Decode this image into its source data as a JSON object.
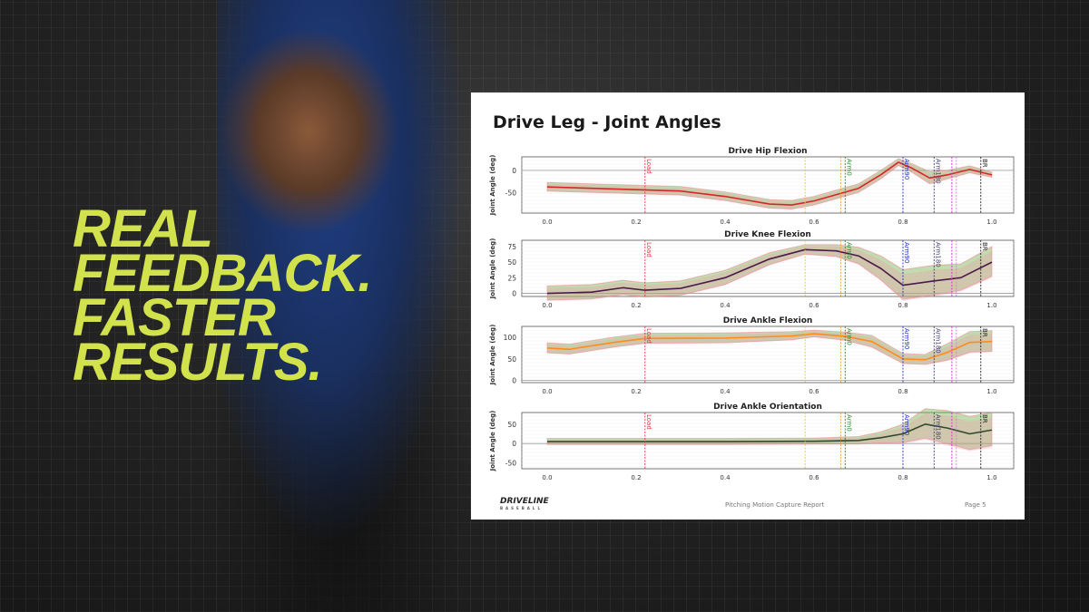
{
  "slogan": {
    "lines": [
      "REAL",
      "FEEDBACK.",
      "FASTER",
      "RESULTS."
    ],
    "color": "#d2e24c"
  },
  "report": {
    "title": "Drive Leg - Joint Angles",
    "footer_center": "Pitching Motion Capture Report",
    "footer_page": "Page 5",
    "logo": {
      "name": "DRIVELINE",
      "sub": "BASEBALL"
    }
  },
  "chart_data": [
    {
      "type": "line",
      "title": "Drive Hip Flexion",
      "ylabel": "Joint Angle (deg)",
      "xlim": [
        0,
        1
      ],
      "ylim": [
        -95,
        30
      ],
      "yticks": [
        0,
        -50
      ],
      "xticks": [
        0.0,
        0.2,
        0.4,
        0.6,
        0.8,
        1.0
      ],
      "grid": true,
      "line_color": "#d62728",
      "x": [
        0,
        0.1,
        0.2,
        0.3,
        0.4,
        0.5,
        0.55,
        0.6,
        0.7,
        0.75,
        0.79,
        0.82,
        0.86,
        0.9,
        0.95,
        1.0
      ],
      "y": [
        -37,
        -40,
        -43,
        -46,
        -58,
        -75,
        -77,
        -68,
        -40,
        -10,
        18,
        5,
        -17,
        -10,
        2,
        -10
      ],
      "band": [
        10,
        10,
        10,
        10,
        10,
        10,
        10,
        10,
        10,
        10,
        8,
        10,
        14,
        10,
        8,
        6
      ]
    },
    {
      "type": "line",
      "title": "Drive Knee Flexion",
      "ylabel": "Joint Angle (deg)",
      "xlim": [
        0,
        1
      ],
      "ylim": [
        -5,
        85
      ],
      "yticks": [
        0,
        25,
        50,
        75
      ],
      "xticks": [
        0.0,
        0.2,
        0.4,
        0.6,
        0.8,
        1.0
      ],
      "grid": true,
      "line_color": "#4a1a4a",
      "x": [
        0,
        0.1,
        0.17,
        0.22,
        0.3,
        0.4,
        0.5,
        0.58,
        0.65,
        0.7,
        0.75,
        0.8,
        0.87,
        0.93,
        1.0
      ],
      "y": [
        0,
        2,
        9,
        5,
        8,
        25,
        55,
        70,
        68,
        60,
        40,
        13,
        20,
        25,
        50
      ],
      "band": [
        12,
        12,
        12,
        12,
        12,
        12,
        10,
        8,
        10,
        14,
        20,
        25,
        25,
        22,
        25
      ]
    },
    {
      "type": "line",
      "title": "Drive Ankle Flexion",
      "ylabel": "Joint Angle (deg)",
      "xlim": [
        0,
        1
      ],
      "ylim": [
        -5,
        125
      ],
      "yticks": [
        0,
        50,
        100
      ],
      "xticks": [
        0.0,
        0.2,
        0.4,
        0.6,
        0.8,
        1.0
      ],
      "grid": true,
      "line_color": "#ff8c1a",
      "x": [
        0,
        0.05,
        0.15,
        0.22,
        0.4,
        0.55,
        0.6,
        0.67,
        0.73,
        0.8,
        0.85,
        0.9,
        0.95,
        1.0
      ],
      "y": [
        75,
        72,
        88,
        97,
        98,
        103,
        108,
        102,
        90,
        50,
        48,
        65,
        88,
        90
      ],
      "band": [
        12,
        12,
        12,
        12,
        12,
        10,
        8,
        10,
        14,
        12,
        12,
        20,
        25,
        25
      ]
    },
    {
      "type": "line",
      "title": "Drive Ankle Orientation",
      "ylabel": "Joint Angle (deg)",
      "xlim": [
        0,
        1
      ],
      "ylim": [
        -65,
        80
      ],
      "yticks": [
        -50,
        0,
        50
      ],
      "xticks": [
        0.0,
        0.2,
        0.4,
        0.6,
        0.8,
        1.0
      ],
      "grid": true,
      "line_color": "#2e4a2e",
      "x": [
        0,
        0.2,
        0.4,
        0.6,
        0.7,
        0.75,
        0.8,
        0.85,
        0.9,
        0.95,
        1.0
      ],
      "y": [
        5,
        5,
        5,
        6,
        8,
        15,
        25,
        50,
        40,
        25,
        35
      ],
      "band": [
        8,
        8,
        8,
        8,
        10,
        15,
        25,
        40,
        45,
        45,
        45
      ]
    }
  ],
  "events": [
    {
      "label": "Load",
      "x": 0.22,
      "color": "#e03040"
    },
    {
      "label": "",
      "x": 0.58,
      "color": "#e8c840"
    },
    {
      "label": "",
      "x": 0.66,
      "color": "#f0a040"
    },
    {
      "label": "Arm0",
      "x": 0.67,
      "color": "#2a8a2a"
    },
    {
      "label": "Arm90",
      "x": 0.8,
      "color": "#2030d0"
    },
    {
      "label": "Arm180",
      "x": 0.87,
      "color": "#404070"
    },
    {
      "label": "",
      "x": 0.91,
      "color": "#e020e0"
    },
    {
      "label": "",
      "x": 0.92,
      "color": "#d080e0"
    },
    {
      "label": "BR",
      "x": 0.975,
      "color": "#222222"
    }
  ]
}
